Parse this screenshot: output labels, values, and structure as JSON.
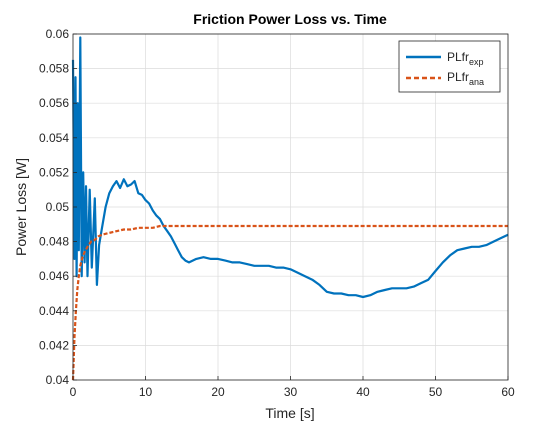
{
  "chart_data": {
    "type": "line",
    "title": "Friction Power Loss vs. Time",
    "xlabel": "Time [s]",
    "ylabel": "Power Loss [W]",
    "xlim": [
      0,
      60
    ],
    "ylim": [
      0.04,
      0.06
    ],
    "xticks": [
      0,
      10,
      20,
      30,
      40,
      50,
      60
    ],
    "yticks": [
      0.04,
      0.042,
      0.044,
      0.046,
      0.048,
      0.05,
      0.052,
      0.054,
      0.056,
      0.058,
      0.06
    ],
    "xtick_labels": [
      "0",
      "10",
      "20",
      "30",
      "40",
      "50",
      "60"
    ],
    "ytick_labels": [
      "0.04",
      "0.042",
      "0.044",
      "0.046",
      "0.048",
      "0.05",
      "0.052",
      "0.054",
      "0.056",
      "0.058",
      "0.06"
    ],
    "grid": true,
    "legend_position": "top-right",
    "series": [
      {
        "name": "PLfr",
        "name_subscript": "exp",
        "color": "#0072BD",
        "style": "solid",
        "x": [
          0.0,
          0.2,
          0.35,
          0.5,
          0.65,
          0.8,
          1.0,
          1.2,
          1.4,
          1.6,
          1.8,
          2.0,
          2.3,
          2.6,
          3.0,
          3.3,
          3.6,
          4.0,
          4.5,
          5.0,
          5.5,
          6.0,
          6.5,
          7.0,
          7.5,
          8.0,
          8.5,
          9.0,
          9.5,
          10.0,
          10.5,
          11.0,
          11.5,
          12.0,
          12.5,
          13.0,
          13.5,
          14.0,
          14.5,
          15.0,
          15.5,
          16.0,
          17.0,
          18.0,
          19.0,
          20.0,
          21.0,
          22.0,
          23.0,
          24.0,
          25.0,
          26.0,
          27.0,
          28.0,
          29.0,
          30.0,
          31.0,
          32.0,
          33.0,
          34.0,
          35.0,
          36.0,
          37.0,
          38.0,
          39.0,
          40.0,
          41.0,
          42.0,
          43.0,
          44.0,
          45.0,
          46.0,
          47.0,
          48.0,
          49.0,
          50.0,
          51.0,
          52.0,
          53.0,
          54.0,
          55.0,
          56.0,
          57.0,
          58.0,
          59.0,
          60.0
        ],
        "y": [
          0.0585,
          0.047,
          0.0575,
          0.046,
          0.056,
          0.0475,
          0.0598,
          0.046,
          0.052,
          0.0468,
          0.0512,
          0.046,
          0.051,
          0.0465,
          0.0505,
          0.0455,
          0.0478,
          0.0488,
          0.05,
          0.0508,
          0.0512,
          0.0515,
          0.0511,
          0.0516,
          0.0512,
          0.0513,
          0.0515,
          0.0508,
          0.0507,
          0.0504,
          0.0502,
          0.0498,
          0.0495,
          0.0493,
          0.0489,
          0.0486,
          0.0483,
          0.0479,
          0.0475,
          0.0471,
          0.0469,
          0.0468,
          0.047,
          0.0471,
          0.047,
          0.047,
          0.0469,
          0.0468,
          0.0468,
          0.0467,
          0.0466,
          0.0466,
          0.0466,
          0.0465,
          0.0465,
          0.0464,
          0.0462,
          0.046,
          0.0458,
          0.0455,
          0.0451,
          0.045,
          0.045,
          0.0449,
          0.0449,
          0.0448,
          0.0449,
          0.0451,
          0.0452,
          0.0453,
          0.0453,
          0.0453,
          0.0454,
          0.0456,
          0.0458,
          0.0463,
          0.0468,
          0.0472,
          0.0475,
          0.0476,
          0.0477,
          0.0477,
          0.0478,
          0.048,
          0.0482,
          0.0484
        ]
      },
      {
        "name": "PLfr",
        "name_subscript": "ana",
        "color": "#D95319",
        "style": "dashed",
        "x": [
          0.0,
          0.2,
          0.4,
          0.6,
          0.8,
          1.0,
          1.3,
          1.6,
          2.0,
          2.5,
          3.0,
          3.5,
          4.0,
          5.0,
          6.0,
          7.0,
          8.0,
          9.0,
          10.0,
          11.0,
          12.0,
          14.0,
          16.0,
          20.0,
          25.0,
          30.0,
          35.0,
          40.0,
          45.0,
          50.0,
          55.0,
          60.0
        ],
        "y": [
          0.04,
          0.0425,
          0.044,
          0.0452,
          0.046,
          0.0466,
          0.0471,
          0.0474,
          0.0477,
          0.048,
          0.0481,
          0.0483,
          0.0484,
          0.0485,
          0.0486,
          0.0487,
          0.0487,
          0.0488,
          0.0488,
          0.0488,
          0.0489,
          0.0489,
          0.0489,
          0.0489,
          0.0489,
          0.0489,
          0.0489,
          0.0489,
          0.0489,
          0.0489,
          0.0489,
          0.0489
        ]
      }
    ]
  }
}
